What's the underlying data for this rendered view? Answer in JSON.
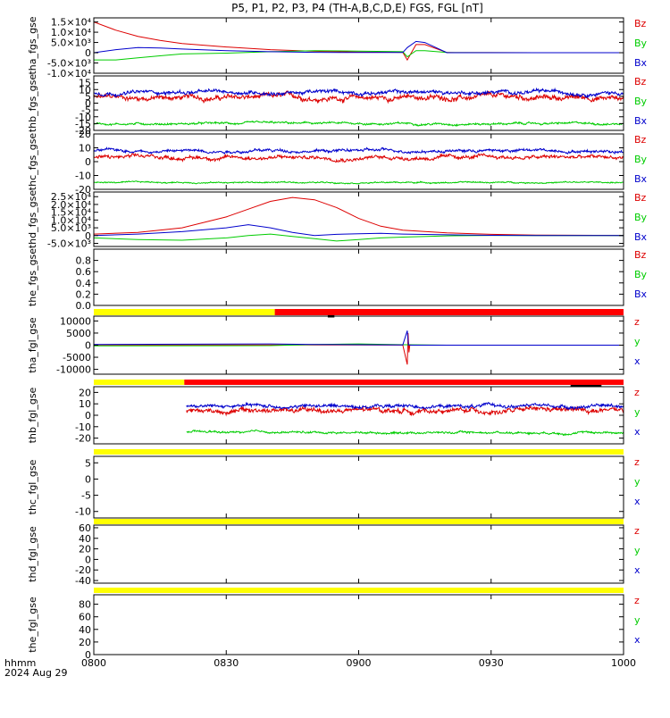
{
  "title": "P5, P1, P2, P3, P4 (TH-A,B,C,D,E) FGS, FGL [nT]",
  "x_axis": {
    "label_line1": "hhmm",
    "label_line2": "2024 Aug 29",
    "tick_labels": [
      "0800",
      "0830",
      "0900",
      "0930",
      "1000"
    ],
    "range_minutes": [
      0,
      120
    ]
  },
  "colors": {
    "x": "#0000cc",
    "y": "#00cc00",
    "z": "#dd0000",
    "bar_yellow": "#ffff00",
    "bar_red": "#ff0000",
    "bar_black": "#000000"
  },
  "chart_data": [
    {
      "type": "line",
      "ylabel": "tha_fgs_gse",
      "ylim": [
        -10000,
        17000
      ],
      "ticks": [
        {
          "v": 15000,
          "t": "1.5×10⁴"
        },
        {
          "v": 10000,
          "t": "1.0×10⁴"
        },
        {
          "v": 5000,
          "t": "5.0×10³"
        },
        {
          "v": 0,
          "t": "0"
        },
        {
          "v": -5000,
          "t": "-5.0×10³"
        },
        {
          "v": -10000,
          "t": "-1.0×10⁴"
        }
      ],
      "legend": [
        "Bz",
        "By",
        "Bx"
      ],
      "series": [
        {
          "name": "Bz",
          "color": "z",
          "x": [
            0,
            5,
            10,
            15,
            20,
            30,
            40,
            50,
            60,
            70,
            71,
            73,
            75,
            80,
            90,
            100,
            120
          ],
          "y": [
            15000,
            11000,
            8000,
            6000,
            4500,
            2800,
            1500,
            700,
            300,
            200,
            -3500,
            4000,
            4000,
            100,
            50,
            0,
            0
          ]
        },
        {
          "name": "By",
          "color": "y",
          "x": [
            0,
            5,
            10,
            15,
            20,
            30,
            40,
            50,
            60,
            70,
            71,
            73,
            75,
            80,
            100,
            120
          ],
          "y": [
            -3500,
            -3500,
            -2500,
            -1500,
            -600,
            -200,
            500,
            1000,
            800,
            500,
            -2000,
            1000,
            1000,
            100,
            0,
            0
          ]
        },
        {
          "name": "Bx",
          "color": "x",
          "x": [
            0,
            5,
            10,
            15,
            20,
            30,
            40,
            50,
            60,
            70,
            71,
            73,
            75,
            80,
            100,
            120
          ],
          "y": [
            0,
            1500,
            2500,
            2300,
            1800,
            1000,
            500,
            200,
            100,
            100,
            2500,
            5500,
            5000,
            0,
            0,
            0
          ]
        }
      ]
    },
    {
      "type": "line",
      "ylabel": "thb_fgs_gse",
      "ylim": [
        -20,
        20
      ],
      "ticks": [
        {
          "v": 15,
          "t": "15"
        },
        {
          "v": 10,
          "t": "10"
        },
        {
          "v": 5,
          "t": "5"
        },
        {
          "v": 0,
          "t": "0"
        },
        {
          "v": -5,
          "t": "-5"
        },
        {
          "v": -10,
          "t": "-10"
        },
        {
          "v": -15,
          "t": "-15"
        },
        {
          "v": -20,
          "t": "-20"
        }
      ],
      "legend": [
        "Bz",
        "By",
        "Bx"
      ],
      "series": [
        {
          "name": "Bz",
          "color": "z",
          "x": [
            0,
            120
          ],
          "y": [
            4,
            4
          ],
          "noise": 2.5
        },
        {
          "name": "By",
          "color": "y",
          "x": [
            0,
            120
          ],
          "y": [
            -15,
            -15
          ],
          "noise": 1.0
        },
        {
          "name": "Bx",
          "color": "x",
          "x": [
            0,
            120
          ],
          "y": [
            8,
            8
          ],
          "noise": 1.8
        }
      ]
    },
    {
      "type": "line",
      "ylabel": "thc_fgs_gse",
      "ylim": [
        -20,
        20
      ],
      "ticks": [
        {
          "v": 20,
          "t": "20"
        },
        {
          "v": 10,
          "t": "10"
        },
        {
          "v": 0,
          "t": "0"
        },
        {
          "v": -10,
          "t": "-10"
        },
        {
          "v": -20,
          "t": "-20"
        }
      ],
      "legend": [
        "Bz",
        "By",
        "Bx"
      ],
      "series": [
        {
          "name": "Bz",
          "color": "z",
          "x": [
            0,
            120
          ],
          "y": [
            3,
            3
          ],
          "noise": 1.8
        },
        {
          "name": "By",
          "color": "y",
          "x": [
            0,
            120
          ],
          "y": [
            -15,
            -15
          ],
          "noise": 0.6
        },
        {
          "name": "Bx",
          "color": "x",
          "x": [
            0,
            120
          ],
          "y": [
            8,
            8
          ],
          "noise": 1.4
        }
      ]
    },
    {
      "type": "line",
      "ylabel": "thd_fgs_gse",
      "ylim": [
        -7000,
        28000
      ],
      "ticks": [
        {
          "v": 25000,
          "t": "2.5×10⁴"
        },
        {
          "v": 20000,
          "t": "2.0×10⁴"
        },
        {
          "v": 15000,
          "t": "1.5×10⁴"
        },
        {
          "v": 10000,
          "t": "1.0×10⁴"
        },
        {
          "v": 5000,
          "t": "5.0×10³"
        },
        {
          "v": 0,
          "t": "0"
        },
        {
          "v": -5000,
          "t": "-5.0×10³"
        }
      ],
      "legend": [
        "Bz",
        "By",
        "Bx"
      ],
      "series": [
        {
          "name": "Bz",
          "color": "z",
          "x": [
            0,
            10,
            20,
            30,
            35,
            40,
            45,
            50,
            55,
            60,
            65,
            70,
            80,
            90,
            100,
            120
          ],
          "y": [
            1000,
            2000,
            5000,
            12000,
            17000,
            22000,
            24500,
            23000,
            18000,
            11000,
            6000,
            3500,
            1800,
            800,
            300,
            100
          ]
        },
        {
          "name": "By",
          "color": "y",
          "x": [
            0,
            10,
            20,
            30,
            35,
            40,
            45,
            50,
            55,
            60,
            65,
            70,
            80,
            90,
            100,
            120
          ],
          "y": [
            -1500,
            -2500,
            -3000,
            -1500,
            0,
            1000,
            -500,
            -2000,
            -3500,
            -2500,
            -1500,
            -1000,
            -200,
            100,
            0,
            0
          ]
        },
        {
          "name": "Bx",
          "color": "x",
          "x": [
            0,
            10,
            20,
            30,
            35,
            40,
            45,
            50,
            55,
            60,
            65,
            70,
            80,
            90,
            100,
            120
          ],
          "y": [
            0,
            1000,
            2500,
            5000,
            7000,
            5000,
            2000,
            0,
            800,
            1200,
            1500,
            1000,
            500,
            200,
            0,
            0
          ]
        }
      ]
    },
    {
      "type": "line",
      "ylabel": "the_fgs_gse",
      "ylim": [
        0,
        1
      ],
      "ticks": [
        {
          "v": 0.8,
          "t": "0.8"
        },
        {
          "v": 0.6,
          "t": "0.6"
        },
        {
          "v": 0.4,
          "t": "0.4"
        },
        {
          "v": 0.2,
          "t": "0.2"
        },
        {
          "v": 0,
          "t": "0.0"
        }
      ],
      "legend": [
        "Bz",
        "By",
        "Bx"
      ],
      "series": []
    },
    {
      "type": "line",
      "ylabel": "tha_fgl_gse",
      "ylim": [
        -12000,
        12000
      ],
      "ticks": [
        {
          "v": 10000,
          "t": "10000"
        },
        {
          "v": 5000,
          "t": "5000"
        },
        {
          "v": 0,
          "t": "0"
        },
        {
          "v": -5000,
          "t": "-5000"
        },
        {
          "v": -10000,
          "t": "-10000"
        }
      ],
      "legend": [
        "z",
        "y",
        "x"
      ],
      "series": [
        {
          "name": "z",
          "color": "z",
          "x": [
            0,
            40,
            70,
            71,
            71.2,
            71.4,
            71.6,
            72,
            80,
            120
          ],
          "y": [
            100,
            100,
            50,
            -8000,
            5000,
            -3000,
            200,
            0,
            0,
            0
          ]
        },
        {
          "name": "y",
          "color": "y",
          "x": [
            0,
            40,
            50,
            60,
            70,
            80,
            120
          ],
          "y": [
            -300,
            -200,
            300,
            500,
            200,
            0,
            0
          ]
        },
        {
          "name": "x",
          "color": "x",
          "x": [
            0,
            40,
            50,
            60,
            70,
            71,
            71.3,
            72,
            80,
            120
          ],
          "y": [
            300,
            500,
            300,
            200,
            100,
            6000,
            100,
            0,
            0,
            0
          ]
        }
      ]
    },
    {
      "type": "line",
      "ylabel": "thb_fgl_gse",
      "ylim": [
        -25,
        25
      ],
      "ticks": [
        {
          "v": 20,
          "t": "20"
        },
        {
          "v": 10,
          "t": "10"
        },
        {
          "v": 0,
          "t": "0"
        },
        {
          "v": -10,
          "t": "-10"
        },
        {
          "v": -20,
          "t": "-20"
        }
      ],
      "legend": [
        "z",
        "y",
        "x"
      ],
      "series": [
        {
          "name": "z",
          "color": "z",
          "x": [
            21,
            120
          ],
          "y": [
            4,
            4
          ],
          "noise": 2.8
        },
        {
          "name": "y",
          "color": "y",
          "x": [
            21,
            120
          ],
          "y": [
            -15,
            -15
          ],
          "noise": 1.2
        },
        {
          "name": "x",
          "color": "x",
          "x": [
            21,
            120
          ],
          "y": [
            8,
            8
          ],
          "noise": 2.0
        }
      ]
    },
    {
      "type": "line",
      "ylabel": "thc_fgl_gse",
      "ylim": [
        -12,
        7
      ],
      "ticks": [
        {
          "v": 5,
          "t": "5"
        },
        {
          "v": 0,
          "t": "0"
        },
        {
          "v": -5,
          "t": "-5"
        },
        {
          "v": -10,
          "t": "-10"
        }
      ],
      "legend": [
        "z",
        "y",
        "x"
      ],
      "series": []
    },
    {
      "type": "line",
      "ylabel": "thd_fgl_gse",
      "ylim": [
        -45,
        65
      ],
      "ticks": [
        {
          "v": 60,
          "t": "60"
        },
        {
          "v": 40,
          "t": "40"
        },
        {
          "v": 20,
          "t": "20"
        },
        {
          "v": 0,
          "t": "0"
        },
        {
          "v": -20,
          "t": "-20"
        },
        {
          "v": -40,
          "t": "-40"
        }
      ],
      "legend": [
        "z",
        "y",
        "x"
      ],
      "series": []
    },
    {
      "type": "line",
      "ylabel": "the_fgl_gse",
      "ylim": [
        0,
        95
      ],
      "ticks": [
        {
          "v": 80,
          "t": "80"
        },
        {
          "v": 60,
          "t": "60"
        },
        {
          "v": 40,
          "t": "40"
        },
        {
          "v": 20,
          "t": "20"
        },
        {
          "v": 0,
          "t": "0"
        }
      ],
      "legend": [
        "z",
        "y",
        "x"
      ],
      "series": []
    }
  ],
  "status_bars": [
    {
      "segments": [
        {
          "x0": 0,
          "x1": 41,
          "color": "bar_yellow"
        },
        {
          "x0": 41,
          "x1": 120,
          "color": "bar_red"
        }
      ],
      "marks": [
        {
          "x0": 53,
          "x1": 54.5,
          "color": "bar_black"
        }
      ]
    },
    {
      "segments": [
        {
          "x0": 0,
          "x1": 20.5,
          "color": "bar_yellow"
        },
        {
          "x0": 20.5,
          "x1": 120,
          "color": "bar_red"
        }
      ],
      "marks": [
        {
          "x0": 108,
          "x1": 115,
          "color": "bar_black"
        },
        {
          "x0": 111,
          "x1": 112,
          "color": "bar_black"
        }
      ]
    },
    {
      "segments": [
        {
          "x0": 0,
          "x1": 120,
          "color": "bar_yellow"
        }
      ],
      "marks": []
    },
    {
      "segments": [
        {
          "x0": 0,
          "x1": 120,
          "color": "bar_yellow"
        }
      ],
      "marks": []
    },
    {
      "segments": [
        {
          "x0": 0,
          "x1": 120,
          "color": "bar_yellow"
        }
      ],
      "marks": []
    }
  ]
}
